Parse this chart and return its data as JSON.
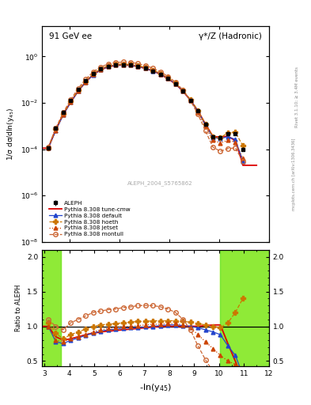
{
  "title_left": "91 GeV ee",
  "title_right": "γ*/Z (Hadronic)",
  "ylabel_main": "1/σ dσ/dln(y$_{45}$)",
  "ylabel_ratio": "Ratio to ALEPH",
  "xlabel": "-ln(y$_{45}$)",
  "right_label": "Rivet 3.1.10; ≥ 3.4M events",
  "right_label2": "mcplots.cern.ch [arXiv:1306.3436]",
  "ref_label": "ALEPH_2004_S5765862",
  "xlim": [
    2.9,
    12.0
  ],
  "ylim_main": [
    1e-08,
    20.0
  ],
  "ylim_ratio": [
    0.42,
    2.1
  ],
  "xticks": [
    3,
    4,
    5,
    6,
    7,
    8,
    9,
    10,
    11,
    12
  ],
  "aleph_x": [
    3.15,
    3.45,
    3.75,
    4.05,
    4.35,
    4.65,
    4.95,
    5.25,
    5.55,
    5.85,
    6.15,
    6.45,
    6.75,
    7.05,
    7.35,
    7.65,
    7.95,
    8.25,
    8.55,
    8.85,
    9.15,
    9.45,
    9.75,
    10.05,
    10.35,
    10.65,
    10.95
  ],
  "aleph_y": [
    0.00011,
    0.0008,
    0.004,
    0.013,
    0.038,
    0.09,
    0.18,
    0.29,
    0.38,
    0.44,
    0.45,
    0.43,
    0.38,
    0.31,
    0.24,
    0.17,
    0.11,
    0.065,
    0.032,
    0.013,
    0.0045,
    0.0012,
    0.00035,
    0.00032,
    0.00048,
    0.00045,
    0.0001
  ],
  "aleph_yerr": [
    2e-05,
    0.0001,
    0.0003,
    0.0008,
    0.002,
    0.004,
    0.007,
    0.01,
    0.012,
    0.012,
    0.012,
    0.011,
    0.01,
    0.009,
    0.007,
    0.005,
    0.004,
    0.0025,
    0.0015,
    0.0008,
    0.0003,
    0.00012,
    5e-05,
    5e-05,
    6e-05,
    6e-05,
    2e-05
  ],
  "band1_xmin": 2.9,
  "band1_xmax": 3.65,
  "band2_xmin": 10.05,
  "band2_xmax": 12.0,
  "green_inner": 0.1,
  "yellow_outer": 0.3
}
